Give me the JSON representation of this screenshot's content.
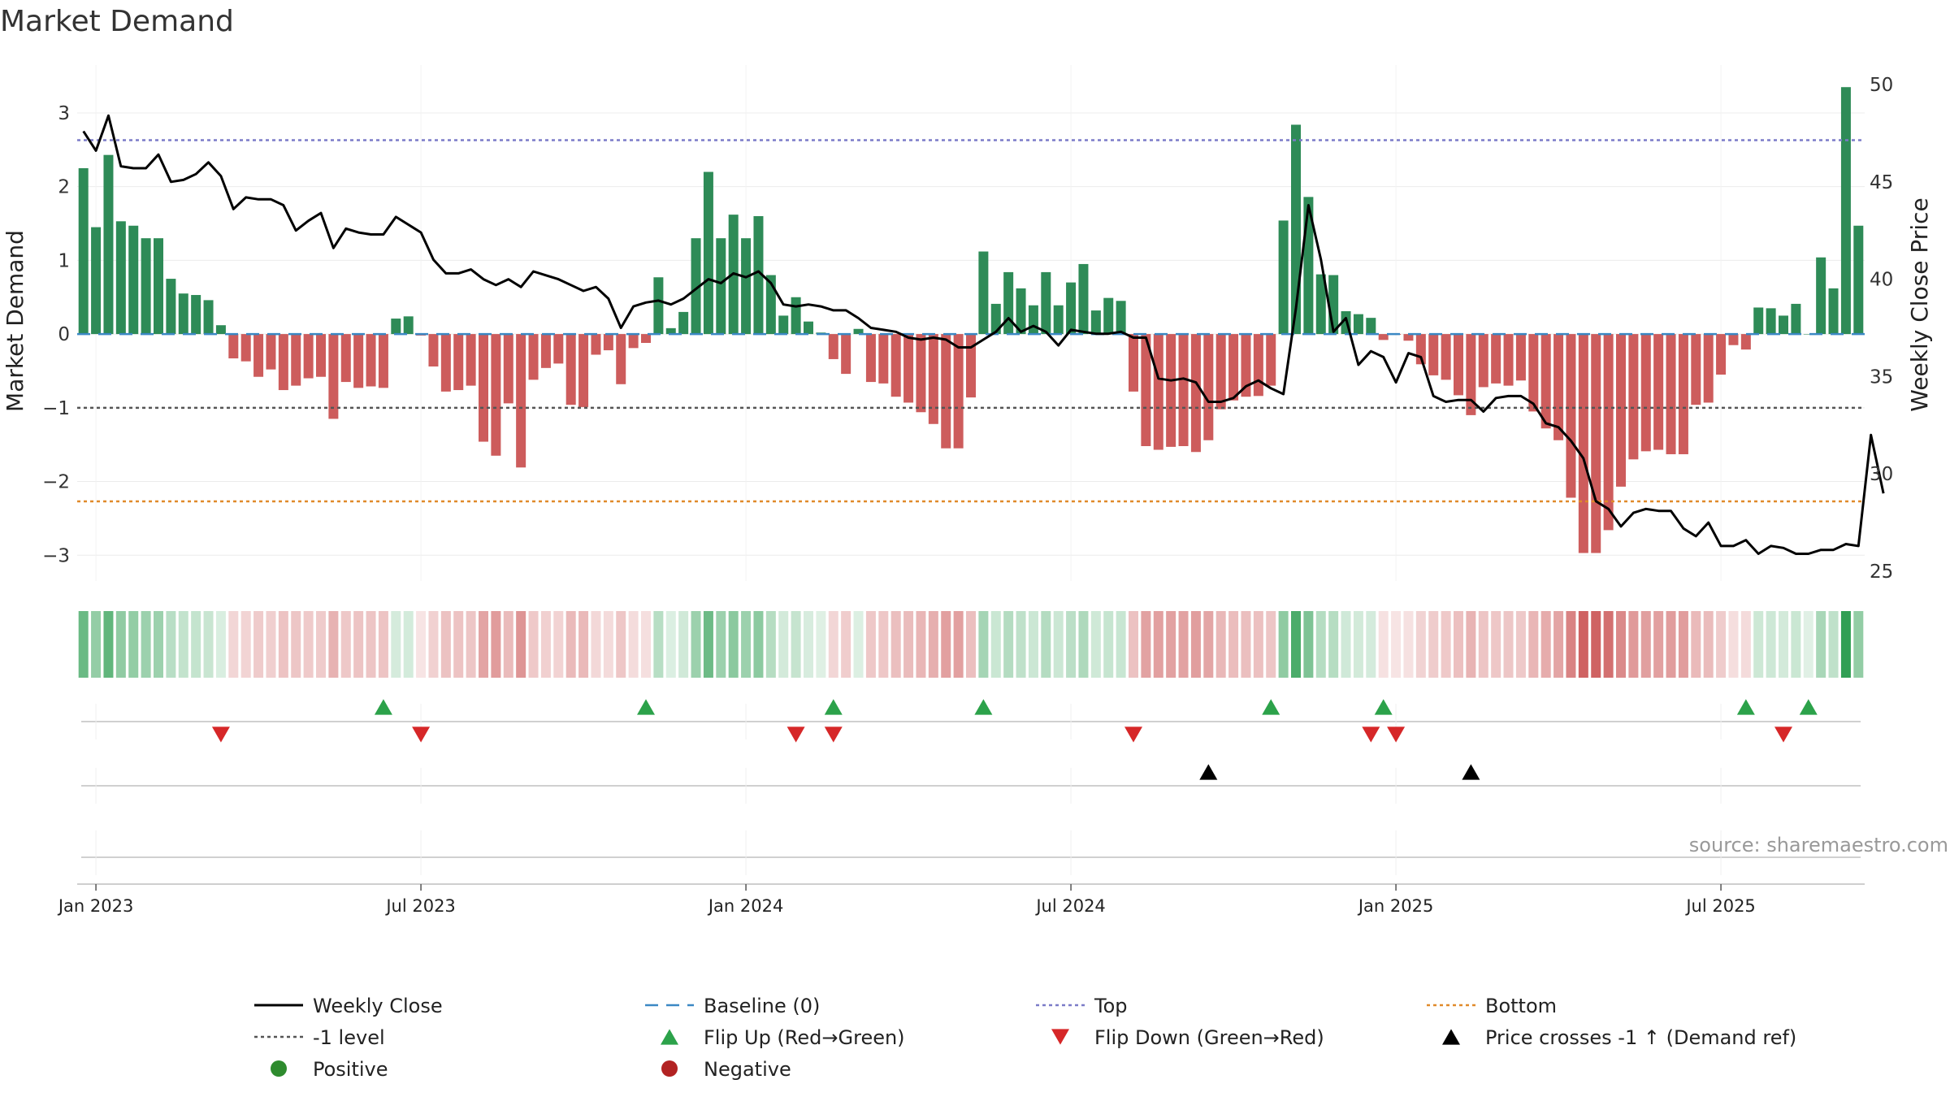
{
  "chart_data": {
    "type": "bar",
    "title": "Market Demand",
    "ylabel": "Market Demand",
    "y2label": "Weekly Close Price",
    "source": "source: sharemaestro.com",
    "ylim": [
      -3.35,
      3.65
    ],
    "y2lim": [
      24.5,
      51.0
    ],
    "yticks": [
      -3,
      -2,
      -1,
      0,
      1,
      2,
      3
    ],
    "yticklabels": [
      "−3",
      "−2",
      "−1",
      "0",
      "1",
      "2",
      "3"
    ],
    "y2ticks": [
      25,
      30,
      35,
      40,
      45,
      50
    ],
    "y2ticklabels": [
      "25",
      "30",
      "35",
      "40",
      "45",
      "50"
    ],
    "xticks": [
      "Jan 2023",
      "Jul 2023",
      "Jan 2024",
      "Jul 2024",
      "Jan 2025",
      "Jul 2025"
    ],
    "xtick_index": [
      1,
      27,
      53,
      79,
      105,
      131
    ],
    "levels": {
      "top": 2.63,
      "minus_one": -1.0,
      "bottom": -2.27,
      "baseline": 0
    },
    "colors": {
      "positive": "#2e8b57",
      "negative": "#cd5c5c",
      "price": "#000000",
      "top": "#7b7bc8",
      "minus_one": "#555555",
      "bottom": "#e08a2a",
      "baseline": "#3b88c4",
      "flip_up": "#2ca24a",
      "flip_down": "#d62728",
      "cross": "#000000",
      "legend_positive": "#2e8b2e",
      "legend_negative": "#b22222"
    },
    "demand": [
      2.25,
      1.45,
      2.43,
      1.53,
      1.47,
      1.3,
      1.3,
      0.75,
      0.55,
      0.53,
      0.46,
      0.12,
      -0.33,
      -0.37,
      -0.58,
      -0.48,
      -0.76,
      -0.7,
      -0.6,
      -0.58,
      -1.15,
      -0.65,
      -0.73,
      -0.71,
      -0.73,
      0.21,
      0.24,
      -0.02,
      -0.44,
      -0.78,
      -0.76,
      -0.7,
      -1.46,
      -1.65,
      -0.94,
      -1.81,
      -0.62,
      -0.46,
      -0.4,
      -0.96,
      -0.99,
      -0.28,
      -0.22,
      -0.68,
      -0.19,
      -0.12,
      0.77,
      0.08,
      0.3,
      1.3,
      2.2,
      1.3,
      1.62,
      1.3,
      1.6,
      0.8,
      0.25,
      0.5,
      0.17,
      0.02,
      -0.34,
      -0.54,
      0.07,
      -0.65,
      -0.67,
      -0.85,
      -0.93,
      -1.06,
      -1.22,
      -1.55,
      -1.55,
      -0.86,
      1.12,
      0.41,
      0.84,
      0.62,
      0.39,
      0.84,
      0.39,
      0.7,
      0.95,
      0.32,
      0.49,
      0.45,
      -0.78,
      -1.52,
      -1.57,
      -1.53,
      -1.52,
      -1.6,
      -1.44,
      -1.02,
      -0.9,
      -0.85,
      -0.84,
      -0.7,
      1.54,
      2.84,
      1.86,
      0.81,
      0.8,
      0.31,
      0.27,
      0.22,
      -0.08,
      -0.01,
      -0.09,
      -0.41,
      -0.56,
      -0.62,
      -0.83,
      -1.1,
      -0.72,
      -0.67,
      -0.7,
      -0.63,
      -1.05,
      -1.28,
      -1.44,
      -2.22,
      -2.97,
      -2.97,
      -2.66,
      -2.07,
      -1.7,
      -1.59,
      -1.57,
      -1.63,
      -1.63,
      -0.96,
      -0.93,
      -0.55,
      -0.15,
      -0.21,
      0.36,
      0.35,
      0.25,
      0.41,
      0.0,
      1.04,
      0.62,
      3.35,
      1.47
    ],
    "price": [
      47.6,
      46.6,
      48.4,
      45.8,
      45.7,
      45.7,
      46.4,
      45.0,
      45.1,
      45.4,
      46.0,
      45.3,
      43.6,
      44.2,
      44.1,
      44.1,
      43.8,
      42.5,
      43.0,
      43.4,
      41.6,
      42.6,
      42.4,
      42.3,
      42.3,
      43.2,
      42.8,
      42.4,
      41.0,
      40.3,
      40.3,
      40.5,
      40.0,
      39.7,
      40.0,
      39.6,
      40.4,
      40.2,
      40.0,
      39.7,
      39.4,
      39.6,
      39.0,
      37.5,
      38.6,
      38.8,
      38.9,
      38.7,
      39.0,
      39.5,
      40.0,
      39.8,
      40.3,
      40.1,
      40.4,
      39.8,
      38.7,
      38.6,
      38.7,
      38.6,
      38.4,
      38.4,
      38.0,
      37.5,
      37.4,
      37.3,
      37.0,
      36.9,
      37.0,
      36.9,
      36.5,
      36.5,
      36.9,
      37.3,
      38.0,
      37.3,
      37.6,
      37.3,
      36.6,
      37.4,
      37.3,
      37.2,
      37.2,
      37.3,
      37.0,
      37.0,
      34.9,
      34.8,
      34.9,
      34.7,
      33.7,
      33.7,
      33.9,
      34.5,
      34.8,
      34.4,
      34.1,
      38.5,
      43.8,
      41.0,
      37.3,
      38.0,
      35.6,
      36.3,
      36.0,
      34.7,
      36.2,
      36.0,
      34.0,
      33.7,
      33.8,
      33.8,
      33.2,
      33.9,
      34.0,
      34.0,
      33.6,
      32.6,
      32.4,
      31.7,
      30.8,
      28.6,
      28.2,
      27.3,
      28.0,
      28.2,
      28.1,
      28.1,
      27.2,
      26.8,
      27.5,
      26.3,
      26.3,
      26.6,
      25.9,
      26.3,
      26.2,
      25.9,
      25.9,
      26.1,
      26.1,
      26.4,
      26.3,
      32.0,
      29.0
    ],
    "flip_up_index": [
      24,
      45,
      60,
      72,
      95,
      104,
      133,
      138
    ],
    "flip_down_index": [
      11,
      27,
      57,
      60,
      84,
      103,
      105,
      136
    ],
    "price_cross_index": [
      90,
      111
    ],
    "legend": [
      {
        "label": "Weekly Close",
        "kind": "line-solid"
      },
      {
        "label": "Baseline (0)",
        "kind": "line-dash"
      },
      {
        "label": "Top",
        "kind": "line-dot-top"
      },
      {
        "label": "Bottom",
        "kind": "line-dot-bottom"
      },
      {
        "label": "-1 level",
        "kind": "line-dot-minus"
      },
      {
        "label": "Flip Up (Red→Green)",
        "kind": "tri-up"
      },
      {
        "label": "Flip Down (Green→Red)",
        "kind": "tri-down"
      },
      {
        "label": "Price crosses -1 ↑ (Demand ref)",
        "kind": "tri-up-black"
      },
      {
        "label": "Positive",
        "kind": "dot-pos"
      },
      {
        "label": "Negative",
        "kind": "dot-neg"
      }
    ]
  }
}
